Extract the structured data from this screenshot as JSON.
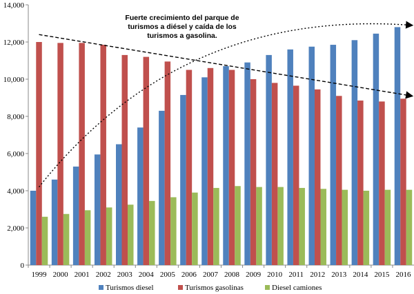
{
  "chart_data": {
    "type": "bar",
    "categories": [
      "1999",
      "2000",
      "2001",
      "2002",
      "2003",
      "2004",
      "2005",
      "2006",
      "2007",
      "2008",
      "2009",
      "2010",
      "2011",
      "2012",
      "2013",
      "2014",
      "2015",
      "2016"
    ],
    "ylim": [
      0,
      14000
    ],
    "yticks": [
      "0",
      "2,000",
      "4,000",
      "6,000",
      "8,000",
      "10,000",
      "12,000",
      "14,000"
    ],
    "grid": false,
    "legend_position": "bottom",
    "series": [
      {
        "name": "Turismos diesel",
        "color": "#4F81BD",
        "values": [
          4000,
          4600,
          5300,
          5950,
          6500,
          7400,
          8300,
          9150,
          10100,
          10700,
          10900,
          11300,
          11600,
          11750,
          11850,
          12100,
          12450,
          12800
        ]
      },
      {
        "name": "Turismos gasolinas",
        "color": "#C0504D",
        "values": [
          12000,
          11950,
          11950,
          11850,
          11300,
          11200,
          10950,
          10500,
          10600,
          10500,
          10000,
          9800,
          9650,
          9450,
          9100,
          8850,
          8800,
          8950
        ]
      },
      {
        "name": "Diesel camiones",
        "color": "#9BBB59",
        "values": [
          2600,
          2750,
          2950,
          3100,
          3250,
          3450,
          3650,
          3900,
          4150,
          4250,
          4200,
          4200,
          4150,
          4100,
          4050,
          4000,
          4050,
          4050
        ]
      }
    ],
    "annotation": {
      "lines": [
        "Fuerte crecimiento del parque de",
        "turismos a diésel y caída de los",
        "turismos a gasolina."
      ]
    },
    "trend_arrows": [
      {
        "from": [
          "1999",
          4200
        ],
        "to": [
          "2016",
          12900
        ],
        "style": "dotted-curve"
      },
      {
        "from": [
          "1999",
          12400
        ],
        "to": [
          "2016",
          9100
        ],
        "style": "dashed-line"
      }
    ]
  }
}
